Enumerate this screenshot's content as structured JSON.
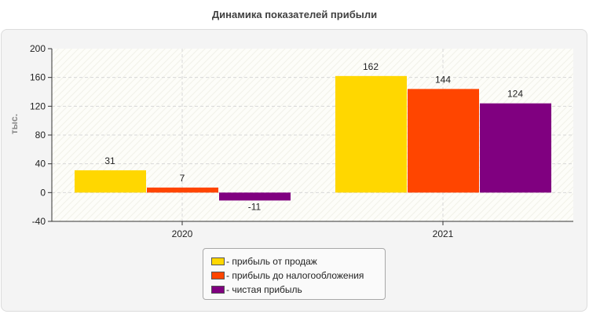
{
  "chart_data": {
    "type": "bar",
    "title": "Динамика показателей прибыли",
    "xlabel": "",
    "ylabel": "тыс.",
    "ylim": [
      -40,
      200
    ],
    "yticks": [
      -40,
      0,
      40,
      80,
      120,
      160,
      200
    ],
    "categories": [
      "2020",
      "2021"
    ],
    "series": [
      {
        "name": "прибыль от продаж",
        "color": "#ffd700",
        "values": [
          31,
          162
        ]
      },
      {
        "name": "прибыль до налогообложения",
        "color": "#ff4500",
        "values": [
          7,
          144
        ]
      },
      {
        "name": "чистая прибыль",
        "color": "#800080",
        "values": [
          -11,
          124
        ]
      }
    ],
    "grid": true,
    "legend_position": "bottom",
    "legend_labels": [
      "- прибыль от продаж",
      "- прибыль до налогообложения",
      "- чистая прибыль"
    ]
  }
}
